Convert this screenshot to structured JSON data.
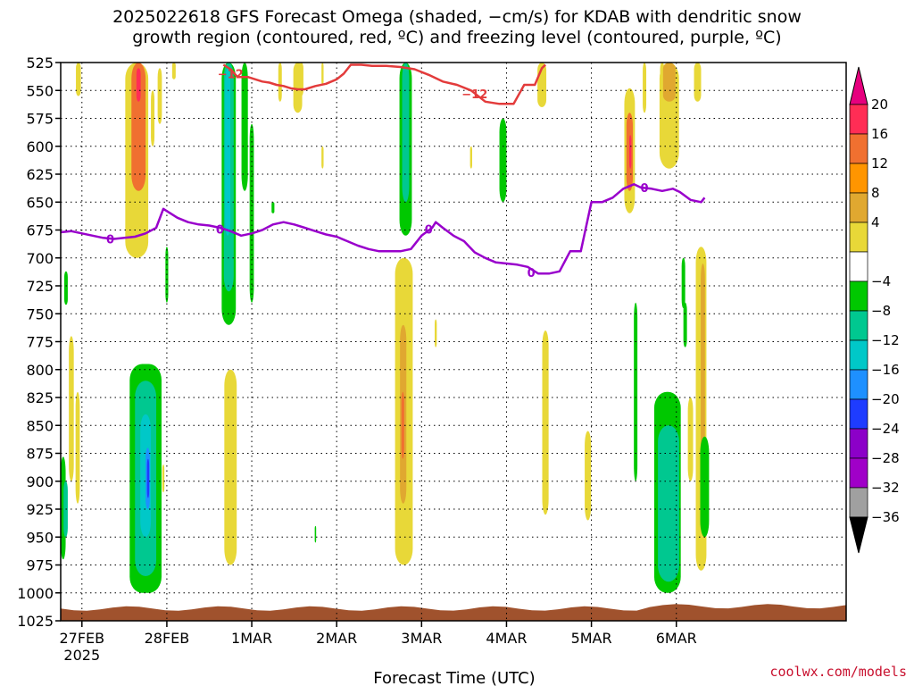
{
  "header": {
    "title_line1": "2025022618 GFS Forecast Omega (shaded, −cm/s) for KDAB with dendritic snow",
    "title_line2": "growth region (contoured, red, ºC) and freezing level (contoured, purple, ºC)"
  },
  "footer": {
    "xlabel": "Forecast Time (UTC)",
    "credit": "coolwx.com/models"
  },
  "chart_data": {
    "type": "heatmap",
    "title": "2025022618 GFS Forecast Omega (shaded, −cm/s) for KDAB with dendritic snow growth region (contoured, red, ºC) and freezing level (contoured, purple, ºC)",
    "xlabel": "Forecast Time (UTC)",
    "ylabel": "",
    "y_axis": {
      "unit": "hPa",
      "inverted": true,
      "ticks": [
        525,
        550,
        575,
        600,
        625,
        650,
        675,
        700,
        725,
        750,
        775,
        800,
        825,
        850,
        875,
        900,
        925,
        950,
        975,
        1000,
        1025
      ],
      "ylim": [
        525,
        1025
      ]
    },
    "x_axis": {
      "unit": "hours since 2025-02-26 18 UTC",
      "xlim": [
        0,
        222
      ],
      "ticks": [
        {
          "h": 6,
          "label": "27FEB",
          "sublabel": "2025"
        },
        {
          "h": 30,
          "label": "28FEB",
          "sublabel": ""
        },
        {
          "h": 54,
          "label": "1MAR",
          "sublabel": ""
        },
        {
          "h": 78,
          "label": "2MAR",
          "sublabel": ""
        },
        {
          "h": 102,
          "label": "3MAR",
          "sublabel": ""
        },
        {
          "h": 126,
          "label": "4MAR",
          "sublabel": ""
        },
        {
          "h": 150,
          "label": "5MAR",
          "sublabel": ""
        },
        {
          "h": 174,
          "label": "6MAR",
          "sublabel": ""
        }
      ]
    },
    "grid": true,
    "colorbar": {
      "labels": [
        "20",
        "16",
        "12",
        "8",
        "4",
        "−4",
        "−8",
        "−12",
        "−16",
        "−20",
        "−24",
        "−28",
        "−32",
        "−36"
      ],
      "colors": [
        "#ff2d55",
        "#f07030",
        "#ff9500",
        "#e0a830",
        "#e8d838",
        "#ffffff",
        "#00c800",
        "#00c890",
        "#00c8c8",
        "#1e90ff",
        "#1e3cff",
        "#8c00c8",
        "#a000c8",
        "#a0a0a0"
      ],
      "top_arrow_color": "#e6007e",
      "bottom_arrow_color": "#000000"
    },
    "series": [
      {
        "name": "freezing level 0 ºC",
        "color": "#9900cc",
        "label": "0",
        "points": [
          [
            0,
            677
          ],
          [
            3,
            676
          ],
          [
            6,
            678
          ],
          [
            9,
            680
          ],
          [
            12,
            682
          ],
          [
            15,
            683
          ],
          [
            18,
            682
          ],
          [
            21,
            681
          ],
          [
            24,
            678
          ],
          [
            27,
            673
          ],
          [
            29,
            656
          ],
          [
            31,
            660
          ],
          [
            33,
            664
          ],
          [
            36,
            668
          ],
          [
            39,
            670
          ],
          [
            42,
            671
          ],
          [
            45,
            673
          ],
          [
            48,
            676
          ],
          [
            51,
            680
          ],
          [
            54,
            678
          ],
          [
            57,
            675
          ],
          [
            60,
            670
          ],
          [
            63,
            668
          ],
          [
            66,
            670
          ],
          [
            69,
            673
          ],
          [
            72,
            676
          ],
          [
            75,
            679
          ],
          [
            78,
            681
          ],
          [
            81,
            685
          ],
          [
            84,
            689
          ],
          [
            87,
            692
          ],
          [
            90,
            694
          ],
          [
            93,
            694
          ],
          [
            96,
            694
          ],
          [
            99,
            692
          ],
          [
            102,
            680
          ],
          [
            105,
            673
          ],
          [
            106,
            668
          ],
          [
            108,
            673
          ],
          [
            111,
            680
          ],
          [
            114,
            685
          ],
          [
            117,
            695
          ],
          [
            120,
            700
          ],
          [
            123,
            704
          ],
          [
            126,
            705
          ],
          [
            129,
            706
          ],
          [
            132,
            708
          ],
          [
            135,
            714
          ],
          [
            138,
            714
          ],
          [
            141,
            712
          ],
          [
            144,
            694
          ],
          [
            147,
            694
          ],
          [
            150,
            650
          ],
          [
            153,
            650
          ],
          [
            156,
            646
          ],
          [
            159,
            638
          ],
          [
            162,
            634
          ],
          [
            164,
            637
          ],
          [
            167,
            638
          ],
          [
            170,
            640
          ],
          [
            173,
            638
          ],
          [
            175,
            641
          ],
          [
            178,
            648
          ],
          [
            181,
            650
          ],
          [
            182,
            646
          ]
        ],
        "label_at": [
          [
            14,
            683
          ],
          [
            45,
            674
          ],
          [
            104,
            674
          ],
          [
            165,
            637
          ],
          [
            133,
            713
          ]
        ]
      },
      {
        "name": "dendritic growth −12 ºC",
        "color": "#e33b3b",
        "label": "−12",
        "points": [
          [
            46,
            527
          ],
          [
            48,
            531
          ],
          [
            50,
            538
          ],
          [
            53,
            538
          ],
          [
            55,
            540
          ],
          [
            57,
            542
          ],
          [
            59,
            543
          ],
          [
            61,
            545
          ],
          [
            63,
            546
          ],
          [
            65,
            548
          ],
          [
            67,
            549
          ],
          [
            69,
            549
          ],
          [
            72,
            546
          ],
          [
            75,
            544
          ],
          [
            78,
            540
          ],
          [
            80,
            535
          ],
          [
            82,
            527
          ],
          [
            85,
            527
          ],
          [
            88,
            528
          ],
          [
            92,
            528
          ],
          [
            96,
            529
          ],
          [
            100,
            531
          ],
          [
            104,
            536
          ],
          [
            108,
            542
          ],
          [
            112,
            545
          ],
          [
            116,
            550
          ],
          [
            120,
            560
          ],
          [
            124,
            562
          ],
          [
            128,
            562
          ],
          [
            131,
            545
          ],
          [
            134,
            545
          ],
          [
            136,
            530
          ],
          [
            137,
            527
          ]
        ],
        "label_at": [
          [
            48,
            535
          ],
          [
            117,
            553
          ]
        ]
      }
    ],
    "shaded_regions": [
      {
        "omega_range": [
          -8,
          -4
        ],
        "color": "#00c800",
        "regions": [
          "27FEB 900-975hPa",
          "28FEB 850-1000hPa",
          "1MAR 525-760hPa",
          "2MAR-3MAR 525-680hPa",
          "4MAR 575-650hPa",
          "6MAR 825-1000hPa"
        ]
      },
      {
        "omega_range": [
          4,
          12
        ],
        "color": "#e8d838",
        "regions": [
          "27FEB 770-950hPa",
          "28FEB 525-700hPa",
          "1MAR 800-975hPa",
          "3MAR 700-975hPa",
          "5MAR 550-650hPa",
          "6MAR 525-900hPa"
        ]
      }
    ]
  }
}
